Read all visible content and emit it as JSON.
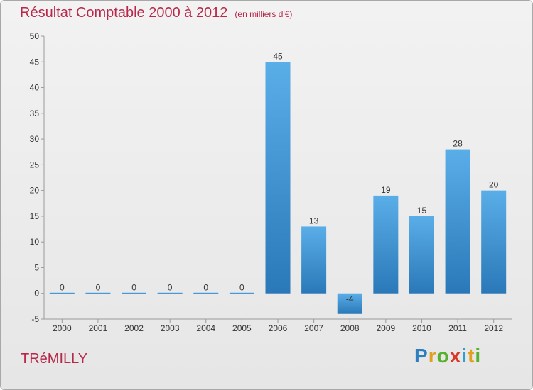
{
  "chart_data": {
    "type": "bar",
    "title": "Résultat Comptable 2000 à 2012",
    "subtitle": "(en milliers d'€)",
    "categories": [
      "2000",
      "2001",
      "2002",
      "2003",
      "2004",
      "2005",
      "2006",
      "2007",
      "2008",
      "2009",
      "2010",
      "2011",
      "2012"
    ],
    "values": [
      0,
      0,
      0,
      0,
      0,
      0,
      45,
      13,
      -4,
      19,
      15,
      28,
      20
    ],
    "data_labels": [
      "0",
      "0",
      "0",
      "0",
      "0",
      "0",
      "45",
      "13",
      "-4",
      "19",
      "15",
      "28",
      "20"
    ],
    "ylim": [
      -5,
      50
    ],
    "yticks": [
      -5,
      0,
      5,
      10,
      15,
      20,
      25,
      30,
      35,
      40,
      45,
      50
    ],
    "grid": false,
    "xlabel": "",
    "ylabel": "",
    "colors": {
      "bar_top": "#5aaee8",
      "bar_bottom": "#2a78b8",
      "title": "#b8284a"
    }
  },
  "footer": {
    "city": "TRéMILLY",
    "logo_letters": [
      {
        "ch": "P",
        "color": "#2e7fc0"
      },
      {
        "ch": "r",
        "color": "#e0a020"
      },
      {
        "ch": "o",
        "color": "#58b030"
      },
      {
        "ch": "x",
        "color": "#d83a2a"
      },
      {
        "ch": "i",
        "color": "#2e9fd0"
      },
      {
        "ch": "t",
        "color": "#e0a020"
      },
      {
        "ch": "i",
        "color": "#58b030"
      }
    ]
  }
}
